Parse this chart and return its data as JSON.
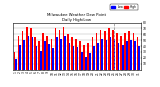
{
  "title": "Milwaukee Weather Dew Point",
  "subtitle": "Daily High/Low",
  "days": [
    "1",
    "2",
    "3",
    "4",
    "5",
    "6",
    "7",
    "8",
    "9",
    "10",
    "11",
    "12",
    "13",
    "14",
    "15",
    "16",
    "17",
    "18",
    "19",
    "20",
    "21",
    "22",
    "23",
    "24",
    "25",
    "26",
    "27",
    "28",
    "29",
    "30",
    "31"
  ],
  "high": [
    30,
    58,
    65,
    72,
    70,
    55,
    48,
    62,
    58,
    52,
    70,
    68,
    72,
    60,
    55,
    52,
    48,
    42,
    45,
    55,
    62,
    68,
    65,
    70,
    68,
    62,
    58,
    62,
    65,
    62,
    55
  ],
  "low": [
    18,
    42,
    50,
    58,
    55,
    40,
    32,
    48,
    44,
    36,
    56,
    52,
    58,
    46,
    40,
    38,
    30,
    22,
    28,
    40,
    46,
    52,
    50,
    56,
    52,
    46,
    42,
    48,
    50,
    48,
    40
  ],
  "bar_color_high": "#ff0000",
  "bar_color_low": "#0000ff",
  "bg_color": "#ffffff",
  "plot_bg": "#ffffff",
  "left_bg": "#c8c8c8",
  "ylim": [
    0,
    80
  ],
  "yticks": [
    10,
    20,
    30,
    40,
    50,
    60,
    70,
    80
  ],
  "legend_high": "High",
  "legend_low": "Low",
  "title_color": "#000000",
  "grid_color": "#aaaaaa",
  "dashed_vline_x": 24,
  "bar_width": 0.4
}
